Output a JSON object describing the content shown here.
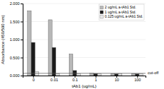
{
  "chart_data": {
    "type": "bar",
    "x": [
      0.001,
      0.01,
      0.1,
      1,
      10,
      100
    ],
    "series": [
      {
        "name": "2 ug/mL a-tAb1 Std.",
        "color": "#b8b8b8",
        "values": [
          1.8,
          1.55,
          0.6,
          0.065,
          0.055,
          0.055
        ]
      },
      {
        "name": "1 ug/mL a-tAb1 Std.",
        "color": "#1a1a1a",
        "values": [
          0.92,
          0.78,
          0.14,
          0.055,
          0.048,
          0.048
        ]
      },
      {
        "name": "0.125 ug/mL a-tAb1 Std.",
        "color": "#e8e8e8",
        "values": [
          0.115,
          0.055,
          0.045,
          0.048,
          0.045,
          0.045
        ]
      }
    ],
    "xlabel": "tAb1 (ug/mL)",
    "ylabel": "Absorbance (450/590 nm)",
    "log": "x",
    "xlim": [
      0.000316227766017,
      251.188643150958
    ],
    "xticks": [
      {
        "value": 0.001,
        "label": "0"
      },
      0.01,
      0.1,
      1,
      10,
      100
    ],
    "ylim": [
      0.0,
      2.0
    ],
    "yticks": [
      {
        "value": 0.0,
        "label": "0.000"
      },
      {
        "value": 0.5,
        "label": "0.500"
      },
      {
        "value": 1.0,
        "label": "1.000"
      },
      {
        "value": 1.5,
        "label": "1.500"
      },
      {
        "value": 2.0,
        "label": "2.000"
      }
    ],
    "grid": true,
    "legend": "upper right",
    "annotations": [
      {
        "text": "cut-off",
        "y": 0.063
      }
    ]
  }
}
